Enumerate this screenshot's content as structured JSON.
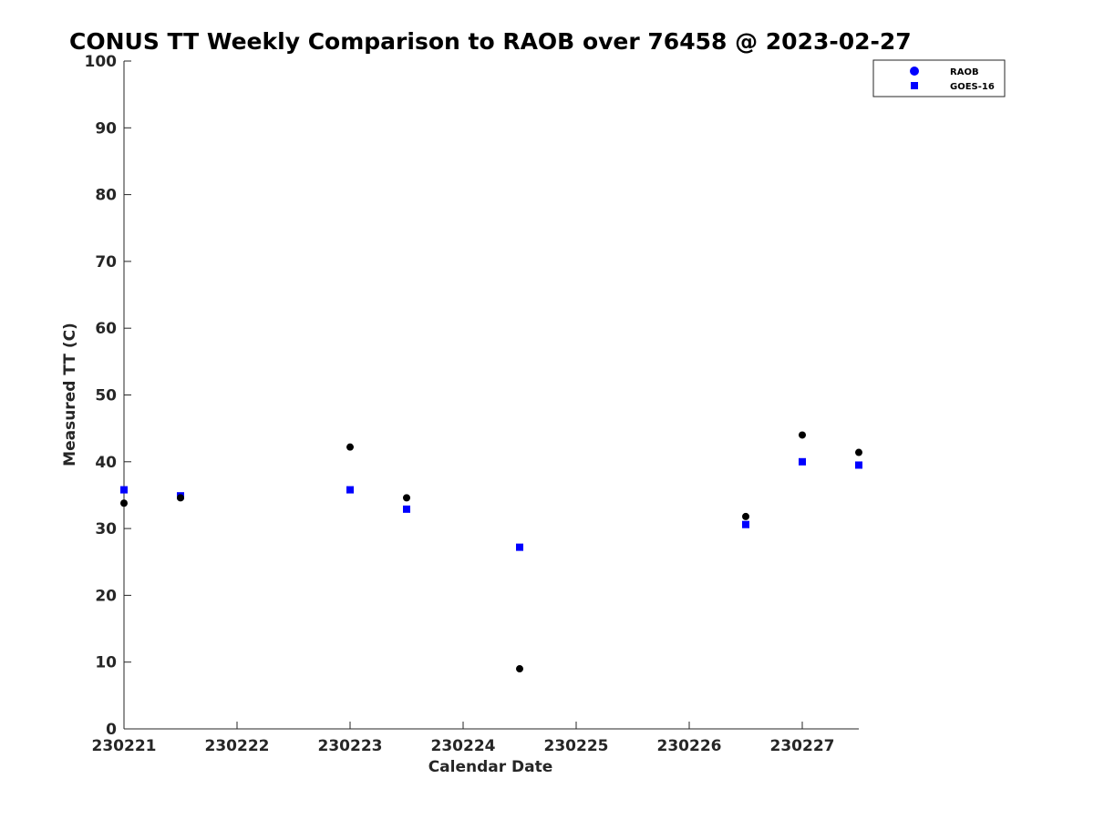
{
  "chart_data": {
    "type": "scatter",
    "title": "CONUS TT Weekly Comparison to RAOB over 76458 @ 2023-02-27",
    "xlabel": "Calendar Date",
    "ylabel": "Measured TT (C)",
    "xlim": [
      230221,
      230227.5
    ],
    "ylim": [
      0,
      100
    ],
    "x_ticks": [
      230221,
      230222,
      230223,
      230224,
      230225,
      230226,
      230227
    ],
    "x_tick_labels": [
      "230221",
      "230222",
      "230223",
      "230224",
      "230225",
      "230226",
      "230227"
    ],
    "y_ticks": [
      0,
      10,
      20,
      30,
      40,
      50,
      60,
      70,
      80,
      90,
      100
    ],
    "y_tick_labels": [
      "0",
      "10",
      "20",
      "30",
      "40",
      "50",
      "60",
      "70",
      "80",
      "90",
      "100"
    ],
    "grid": false,
    "legend_position": "top-right",
    "series": [
      {
        "name": "RAOB",
        "marker": "circle",
        "legend_color": "#0000ff",
        "point_color": "#000000",
        "points": [
          {
            "x": 230221.0,
            "y": 33.8
          },
          {
            "x": 230221.5,
            "y": 34.6
          },
          {
            "x": 230223.0,
            "y": 42.2
          },
          {
            "x": 230223.5,
            "y": 34.6
          },
          {
            "x": 230224.5,
            "y": 9.0
          },
          {
            "x": 230226.5,
            "y": 31.8
          },
          {
            "x": 230227.0,
            "y": 44.0
          },
          {
            "x": 230227.5,
            "y": 41.4
          }
        ]
      },
      {
        "name": "GOES-16",
        "marker": "square",
        "legend_color": "#0000ff",
        "point_color": "#0000ff",
        "points": [
          {
            "x": 230221.0,
            "y": 35.8
          },
          {
            "x": 230221.5,
            "y": 34.9
          },
          {
            "x": 230223.0,
            "y": 35.8
          },
          {
            "x": 230223.5,
            "y": 32.9
          },
          {
            "x": 230224.5,
            "y": 27.2
          },
          {
            "x": 230226.5,
            "y": 30.6
          },
          {
            "x": 230227.0,
            "y": 40.0
          },
          {
            "x": 230227.5,
            "y": 39.5
          }
        ]
      }
    ]
  }
}
